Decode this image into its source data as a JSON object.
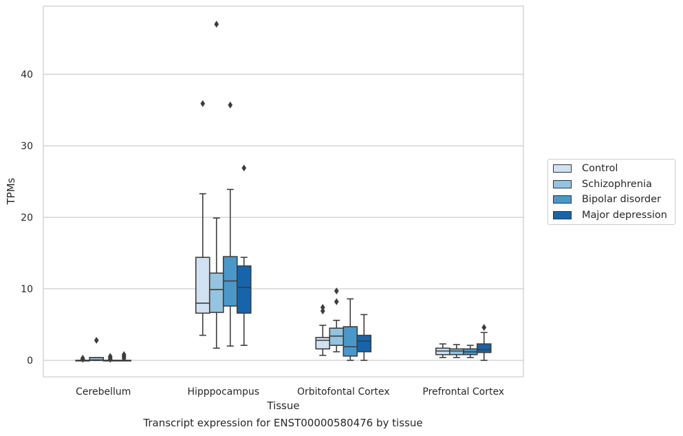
{
  "chart_data": {
    "type": "box",
    "title": "Transcript expression for ENST00000580476 by tissue",
    "xlabel": "Tissue",
    "ylabel": "TPMs",
    "ylim": [
      -2.3,
      49.5
    ],
    "yticks": [
      0,
      10,
      20,
      30,
      40
    ],
    "grid": "horizontal",
    "legend_position": "right",
    "categories": [
      "Cerebellum",
      "Hipppocampus",
      "Orbitofontal Cortex",
      "Prefrontal Cortex"
    ],
    "series": [
      {
        "name": "Control",
        "color": "#d0e1f2",
        "boxes": [
          {
            "whisker_low": 0,
            "q1": 0,
            "median": 0,
            "q3": 0,
            "whisker_high": 0,
            "outliers": [
              0.3,
              0.15
            ]
          },
          {
            "whisker_low": 3.5,
            "q1": 6.6,
            "median": 8.0,
            "q3": 14.4,
            "whisker_high": 23.3,
            "outliers": [
              35.9
            ]
          },
          {
            "whisker_low": 0.7,
            "q1": 1.6,
            "median": 2.8,
            "q3": 3.2,
            "whisker_high": 4.9,
            "outliers": [
              6.9,
              7.4
            ]
          },
          {
            "whisker_low": 0.4,
            "q1": 0.8,
            "median": 1.3,
            "q3": 1.7,
            "whisker_high": 2.3,
            "outliers": []
          }
        ]
      },
      {
        "name": "Schizophrenia",
        "color": "#94c4df",
        "boxes": [
          {
            "whisker_low": 0,
            "q1": 0,
            "median": 0.05,
            "q3": 0.4,
            "whisker_high": 0.4,
            "outliers": [
              2.8
            ]
          },
          {
            "whisker_low": 1.7,
            "q1": 6.7,
            "median": 9.9,
            "q3": 12.2,
            "whisker_high": 19.9,
            "outliers": [
              47.0
            ]
          },
          {
            "whisker_low": 1.2,
            "q1": 2.1,
            "median": 3.4,
            "q3": 4.5,
            "whisker_high": 5.6,
            "outliers": [
              8.2,
              9.7
            ]
          },
          {
            "whisker_low": 0.4,
            "q1": 0.8,
            "median": 1.3,
            "q3": 1.6,
            "whisker_high": 2.2,
            "outliers": []
          }
        ]
      },
      {
        "name": "Bipolar disorder",
        "color": "#4a98c9",
        "boxes": [
          {
            "whisker_low": 0,
            "q1": 0,
            "median": 0,
            "q3": 0,
            "whisker_high": 0,
            "outliers": [
              0.15,
              0.35,
              0.55
            ]
          },
          {
            "whisker_low": 2.0,
            "q1": 7.6,
            "median": 11.1,
            "q3": 14.5,
            "whisker_high": 23.9,
            "outliers": [
              35.7
            ]
          },
          {
            "whisker_low": 0,
            "q1": 0.6,
            "median": 1.9,
            "q3": 4.7,
            "whisker_high": 8.6,
            "outliers": []
          },
          {
            "whisker_low": 0.4,
            "q1": 0.8,
            "median": 1.2,
            "q3": 1.6,
            "whisker_high": 2.1,
            "outliers": []
          }
        ]
      },
      {
        "name": "Major depression",
        "color": "#1764ab",
        "boxes": [
          {
            "whisker_low": 0,
            "q1": 0,
            "median": 0,
            "q3": 0,
            "whisker_high": 0,
            "outliers": [
              0.3,
              0.55,
              0.8
            ]
          },
          {
            "whisker_low": 2.1,
            "q1": 6.6,
            "median": 10.2,
            "q3": 13.2,
            "whisker_high": 14.4,
            "outliers": [
              26.9
            ]
          },
          {
            "whisker_low": 0,
            "q1": 1.2,
            "median": 2.7,
            "q3": 3.5,
            "whisker_high": 6.4,
            "outliers": []
          },
          {
            "whisker_low": 0,
            "q1": 1.1,
            "median": 1.5,
            "q3": 2.3,
            "whisker_high": 3.9,
            "outliers": [
              4.6
            ]
          }
        ]
      }
    ]
  }
}
